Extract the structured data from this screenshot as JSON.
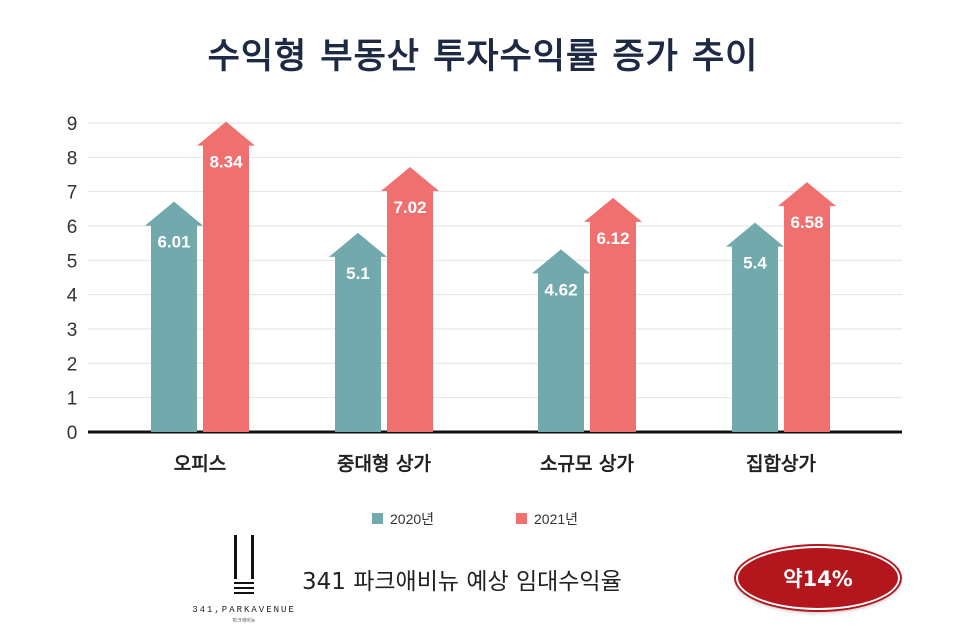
{
  "chart_data": {
    "type": "bar",
    "title": "수익형 부동산 투자수익률 증가 추이",
    "categories": [
      "오피스",
      "중대형 상가",
      "소규모 상가",
      "집합상가"
    ],
    "series": [
      {
        "name": "2020년",
        "values": [
          6.01,
          5.1,
          4.62,
          5.4
        ],
        "labels": [
          "6.01",
          "5.1",
          "4.62",
          "5.4"
        ],
        "color": "#72a9ad"
      },
      {
        "name": "2021년",
        "values": [
          8.34,
          7.02,
          6.12,
          6.58
        ],
        "labels": [
          "8.34",
          "7.02",
          "6.12",
          "6.58"
        ],
        "color": "#f07070"
      }
    ],
    "yticks": [
      0,
      1,
      2,
      3,
      4,
      5,
      6,
      7,
      8,
      9
    ],
    "ylim": [
      0,
      9
    ],
    "grid": true,
    "legend": "bottom-center",
    "bar_style": "arrow"
  },
  "footer": {
    "logo_text": "341,PARKAVENUE",
    "logo_subtext": "파크애비뉴",
    "caption": "341 파크애비뉴 예상 임대수익율",
    "badge": "약14%"
  }
}
